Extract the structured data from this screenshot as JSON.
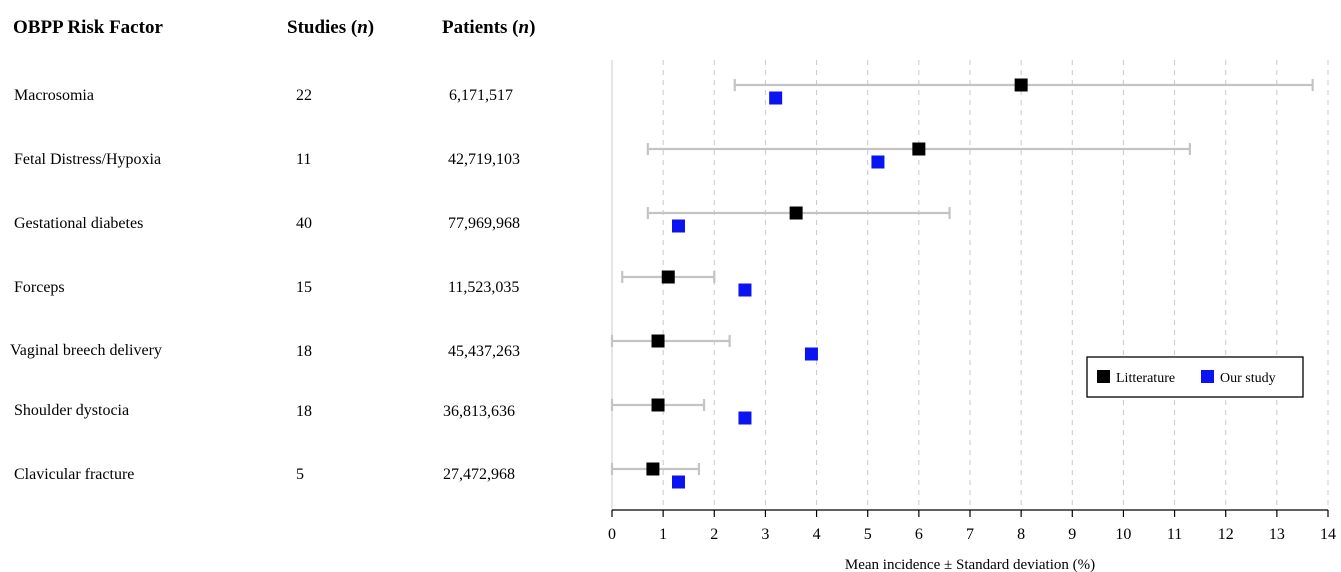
{
  "table": {
    "headers": {
      "factor": "OBPP Risk Factor",
      "studies_prefix": "Studies (",
      "studies_n": "n",
      "studies_suffix": ")",
      "patients_prefix": "Patients (",
      "patients_n": "n",
      "patients_suffix": ")"
    },
    "rows": [
      {
        "factor": "Macrosomia",
        "studies": "22",
        "patients": "6,171,517"
      },
      {
        "factor": "Fetal Distress/Hypoxia",
        "studies": "11",
        "patients": "42,719,103"
      },
      {
        "factor": "Gestational diabetes",
        "studies": "40",
        "patients": "77,969,968"
      },
      {
        "factor": "Forceps",
        "studies": "15",
        "patients": "11,523,035"
      },
      {
        "factor": "Vaginal breech delivery",
        "studies": "18",
        "patients": "45,437,263"
      },
      {
        "factor": "Shoulder dystocia",
        "studies": "18",
        "patients": "36,813,636"
      },
      {
        "factor": "Clavicular fracture",
        "studies": "5",
        "patients": "27,472,968"
      }
    ]
  },
  "chart_data": {
    "type": "scatter",
    "xlabel": "Mean incidence ± Standard deviation (%)",
    "xlim": [
      0,
      14
    ],
    "xticks": [
      0,
      1,
      2,
      3,
      4,
      5,
      6,
      7,
      8,
      9,
      10,
      11,
      12,
      13,
      14
    ],
    "grid": "vertical dashed",
    "legend_placement": "right",
    "categories": [
      "Macrosomia",
      "Fetal Distress/Hypoxia",
      "Gestational diabetes",
      "Forceps",
      "Vaginal breech delivery",
      "Shoulder dystocia",
      "Clavicular fracture"
    ],
    "series": [
      {
        "name": "Litterature",
        "color": "#000000",
        "marker": "square",
        "values": [
          8.0,
          6.0,
          3.6,
          1.1,
          0.9,
          0.9,
          0.8
        ],
        "error_low": [
          2.4,
          0.7,
          0.7,
          0.2,
          0.0,
          0.0,
          0.0
        ],
        "error_high": [
          13.7,
          11.3,
          6.6,
          2.0,
          2.3,
          1.8,
          1.7
        ]
      },
      {
        "name": "Our study",
        "color": "#0a14f0",
        "marker": "square",
        "values": [
          3.2,
          5.2,
          1.3,
          2.6,
          3.9,
          2.6,
          1.3
        ]
      }
    ],
    "error_bar_color": "#c4c4c4"
  }
}
